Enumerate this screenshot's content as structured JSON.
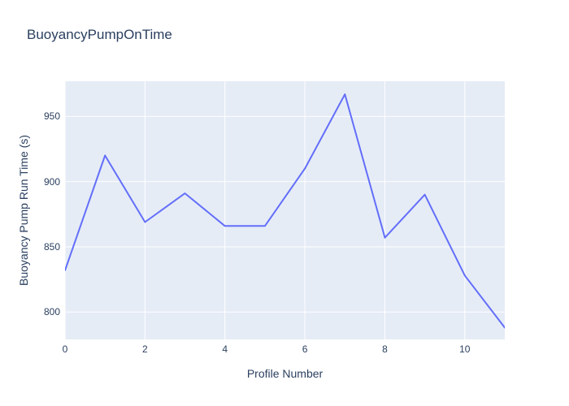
{
  "title": "BuoyancyPumpOnTime",
  "chart_data": {
    "type": "line",
    "title": "BuoyancyPumpOnTime",
    "xlabel": "Profile Number",
    "ylabel": "Buoyancy Pump Run Time (s)",
    "x": [
      0,
      1,
      2,
      3,
      4,
      5,
      6,
      7,
      8,
      9,
      10,
      11
    ],
    "y": [
      832,
      920,
      869,
      891,
      866,
      866,
      910,
      967,
      857,
      890,
      828,
      788
    ],
    "xlim": [
      0,
      11
    ],
    "ylim": [
      779,
      977
    ],
    "x_ticks": [
      0,
      2,
      4,
      6,
      8,
      10
    ],
    "y_ticks": [
      800,
      850,
      900,
      950
    ],
    "grid": true,
    "legend": "none",
    "colors": {
      "line": "#636efa",
      "plot_background": "#e5ecf6",
      "gridline": "#ffffff",
      "text": "#2a3f5f",
      "paper_background": "#ffffff"
    }
  }
}
